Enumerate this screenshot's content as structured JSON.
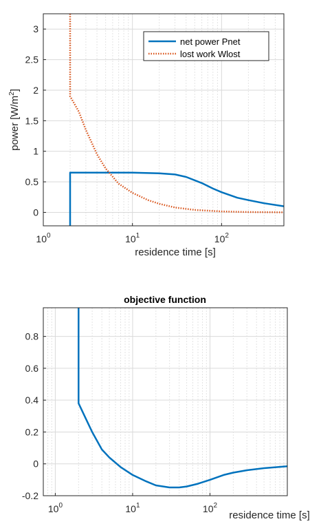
{
  "chart_data": [
    {
      "type": "line",
      "title": "",
      "xlabel": "residence time [s]",
      "ylabel": "power [W/m",
      "ylabel_sup": "2",
      "ylabel_end": "]",
      "xscale": "log",
      "xlim": [
        1,
        500
      ],
      "ylim": [
        -0.22,
        3.25
      ],
      "xticks": [
        1,
        10,
        100
      ],
      "xtick_base": "10",
      "xtick_exps": [
        "0",
        "1",
        "2"
      ],
      "yticks": [
        0,
        0.5,
        1,
        1.5,
        2,
        2.5,
        3
      ],
      "ytick_labels": [
        "0",
        "0.5",
        "1",
        "1.5",
        "2",
        "2.5",
        "3"
      ],
      "grid": true,
      "legend": "top-right",
      "series": [
        {
          "name": "net power Pnet",
          "color": "#0072BD",
          "style": "solid",
          "points": [
            [
              2,
              -0.22
            ],
            [
              2,
              0.65
            ],
            [
              5,
              0.65
            ],
            [
              10,
              0.65
            ],
            [
              20,
              0.64
            ],
            [
              30,
              0.62
            ],
            [
              40,
              0.58
            ],
            [
              60,
              0.48
            ],
            [
              80,
              0.39
            ],
            [
              100,
              0.33
            ],
            [
              150,
              0.24
            ],
            [
              200,
              0.2
            ],
            [
              300,
              0.15
            ],
            [
              500,
              0.1
            ]
          ]
        },
        {
          "name": "lost work Wlost",
          "color": "#D95319",
          "style": "dotted",
          "points": [
            [
              2,
              3.25
            ],
            [
              2,
              1.9
            ],
            [
              2.5,
              1.65
            ],
            [
              3,
              1.35
            ],
            [
              4,
              0.95
            ],
            [
              5,
              0.72
            ],
            [
              7,
              0.47
            ],
            [
              10,
              0.32
            ],
            [
              15,
              0.2
            ],
            [
              20,
              0.14
            ],
            [
              30,
              0.08
            ],
            [
              50,
              0.04
            ],
            [
              100,
              0.015
            ],
            [
              200,
              0.005
            ],
            [
              500,
              0.001
            ]
          ]
        }
      ]
    },
    {
      "type": "line",
      "title": "objective function",
      "xlabel": "residence time [s]",
      "ylabel": "",
      "xscale": "log",
      "xlim": [
        0.7,
        1000
      ],
      "ylim": [
        -0.2,
        0.98
      ],
      "xticks": [
        1,
        10,
        100
      ],
      "xtick_base": "10",
      "xtick_exps": [
        "0",
        "1",
        "2"
      ],
      "yticks": [
        -0.2,
        0,
        0.2,
        0.4,
        0.6,
        0.8
      ],
      "ytick_labels": [
        "-0.2",
        "0",
        "0.2",
        "0.4",
        "0.6",
        "0.8"
      ],
      "grid": true,
      "series": [
        {
          "color": "#0072BD",
          "style": "solid",
          "points": [
            [
              2,
              0.98
            ],
            [
              2,
              0.38
            ],
            [
              3,
              0.2
            ],
            [
              4,
              0.09
            ],
            [
              5,
              0.04
            ],
            [
              7,
              -0.02
            ],
            [
              10,
              -0.07
            ],
            [
              15,
              -0.11
            ],
            [
              20,
              -0.135
            ],
            [
              30,
              -0.148
            ],
            [
              40,
              -0.148
            ],
            [
              50,
              -0.142
            ],
            [
              70,
              -0.125
            ],
            [
              100,
              -0.1
            ],
            [
              150,
              -0.07
            ],
            [
              200,
              -0.055
            ],
            [
              300,
              -0.04
            ],
            [
              500,
              -0.027
            ],
            [
              1000,
              -0.015
            ]
          ]
        }
      ]
    }
  ]
}
